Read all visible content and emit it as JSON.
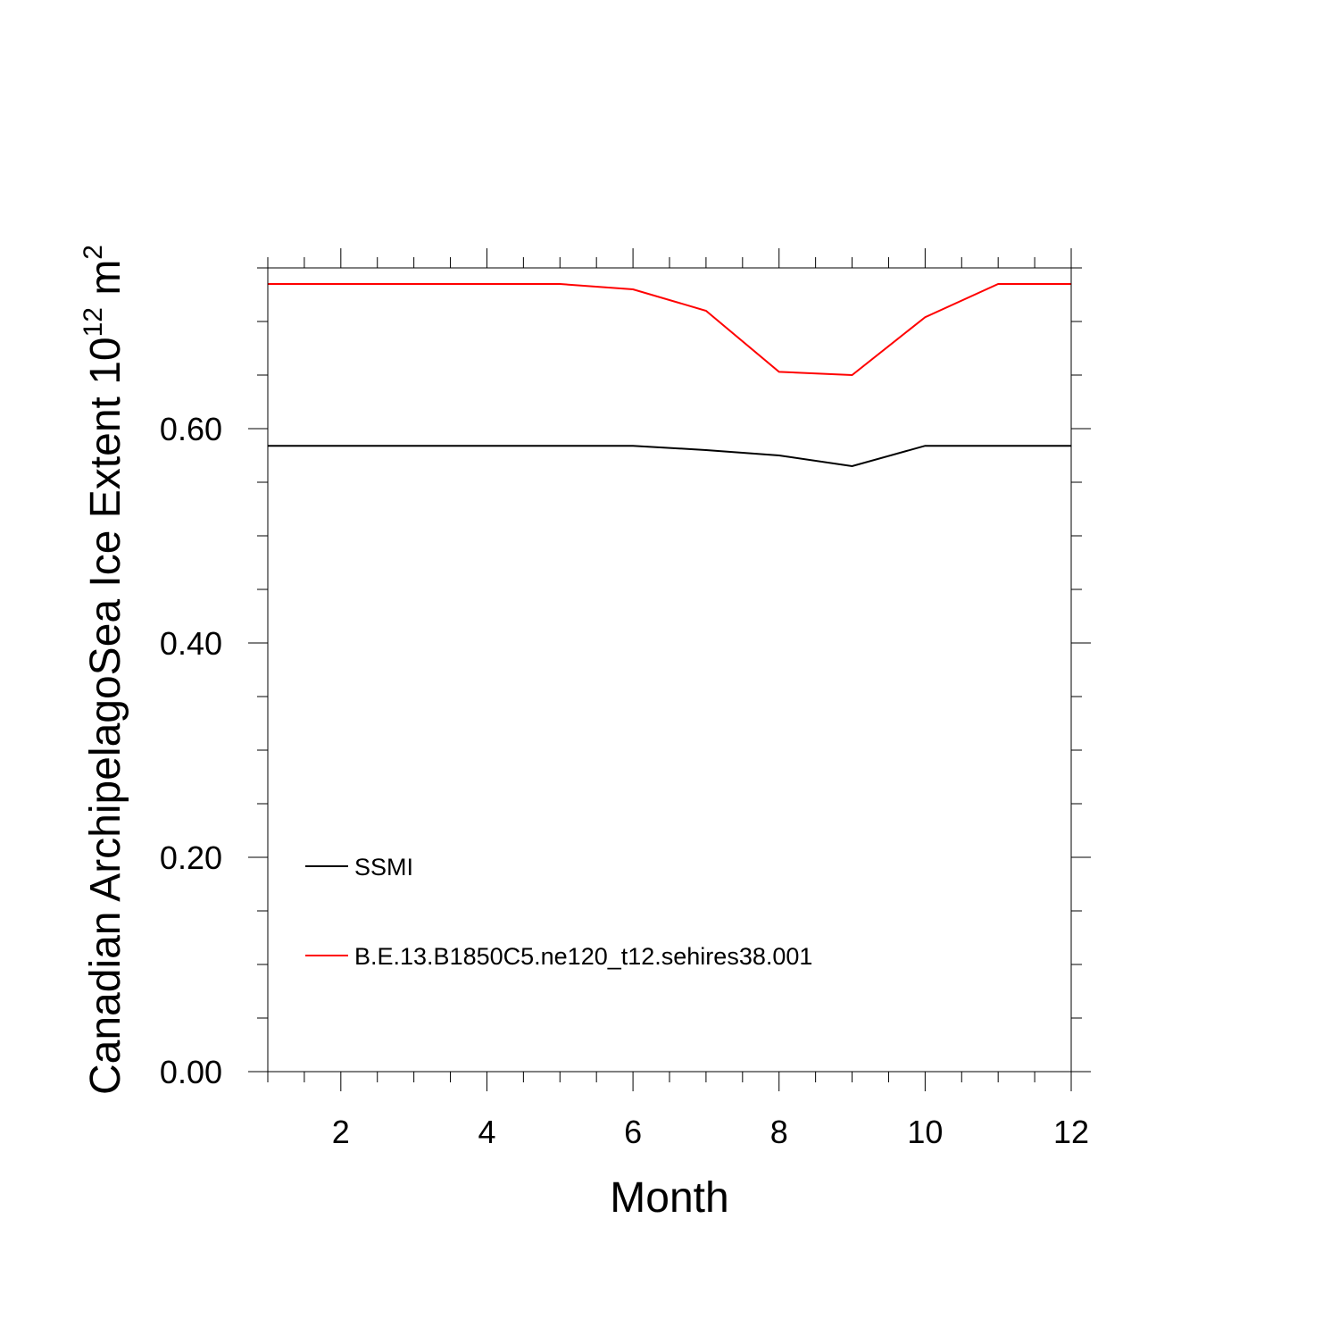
{
  "chart_data": {
    "type": "line",
    "xlabel": "Month",
    "ylabel": {
      "text": "Canadian ArchipelagoSea Ice Extent 10",
      "superscript": "12",
      "unit": " m",
      "unit_superscript": "2"
    },
    "xlim": [
      1,
      12
    ],
    "ylim": [
      0,
      0.75
    ],
    "x_ticks": [
      2,
      4,
      6,
      8,
      10,
      12
    ],
    "x_tick_labels": [
      "2",
      "4",
      "6",
      "8",
      "10",
      "12"
    ],
    "y_ticks": [
      0,
      0.2,
      0.4,
      0.6
    ],
    "y_tick_labels": [
      "0.00",
      "0.20",
      "0.40",
      "0.60"
    ],
    "grid": false,
    "legend_placement": "lower-left",
    "x": [
      1,
      2,
      3,
      4,
      5,
      6,
      7,
      8,
      9,
      10,
      11,
      12
    ],
    "series": [
      {
        "name": "SSMI",
        "color": "#000000",
        "values": [
          0.584,
          0.584,
          0.584,
          0.584,
          0.584,
          0.584,
          0.58,
          0.575,
          0.565,
          0.584,
          0.584,
          0.584
        ]
      },
      {
        "name": "B.E.13.B1850C5.ne120_t12.sehires38.001",
        "color": "#ff0000",
        "values": [
          0.735,
          0.735,
          0.735,
          0.735,
          0.735,
          0.73,
          0.71,
          0.653,
          0.65,
          0.704,
          0.735,
          0.735
        ]
      }
    ]
  }
}
